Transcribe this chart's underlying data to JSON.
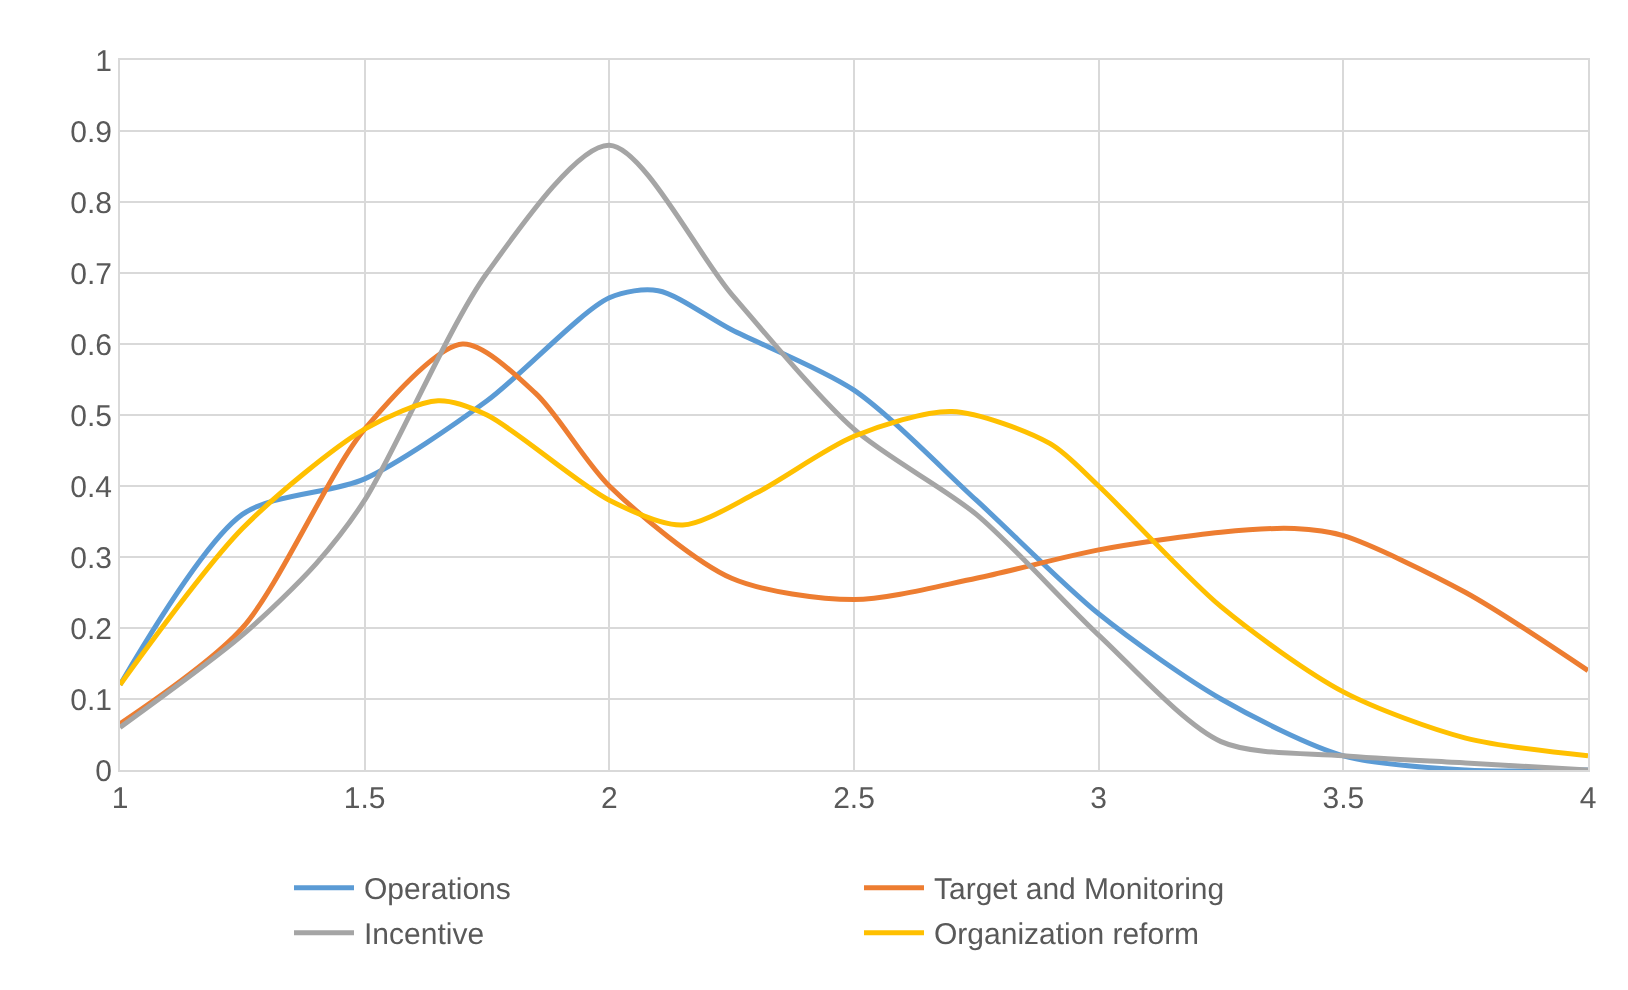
{
  "chart_data": {
    "type": "line",
    "xlim": [
      1,
      4
    ],
    "xticks": [
      1,
      1.5,
      2,
      2.5,
      3,
      3.5,
      4
    ],
    "ylim": [
      0,
      1
    ],
    "yticks": [
      0,
      0.1,
      0.2,
      0.3,
      0.4,
      0.5,
      0.6,
      0.7,
      0.8,
      0.9,
      1
    ],
    "grid": true,
    "legend": "bottom",
    "marker": "none",
    "line_style": "solid",
    "series": [
      {
        "name": "Operations",
        "color": "#5b9bd5",
        "x": [
          1,
          1.25,
          1.5,
          1.75,
          2,
          2.1,
          2.25,
          2.5,
          2.75,
          3,
          3.25,
          3.5,
          3.75,
          4
        ],
        "values": [
          0.12,
          0.36,
          0.41,
          0.52,
          0.665,
          0.675,
          0.62,
          0.535,
          0.38,
          0.22,
          0.1,
          0.02,
          0.0,
          0.0
        ]
      },
      {
        "name": "Target and Monitoring",
        "color": "#ed7d31",
        "x": [
          1,
          1.25,
          1.5,
          1.7,
          1.85,
          2,
          2.25,
          2.5,
          2.75,
          3,
          3.25,
          3.4,
          3.5,
          3.75,
          4
        ],
        "values": [
          0.065,
          0.2,
          0.48,
          0.6,
          0.53,
          0.4,
          0.27,
          0.24,
          0.27,
          0.31,
          0.335,
          0.34,
          0.33,
          0.25,
          0.14
        ]
      },
      {
        "name": "Incentive",
        "color": "#a5a5a5",
        "x": [
          1,
          1.25,
          1.4,
          1.5,
          1.75,
          2,
          2.25,
          2.5,
          2.75,
          3,
          3.25,
          3.5,
          3.75,
          4
        ],
        "values": [
          0.06,
          0.19,
          0.29,
          0.38,
          0.7,
          0.88,
          0.67,
          0.48,
          0.36,
          0.19,
          0.04,
          0.02,
          0.01,
          0.0
        ]
      },
      {
        "name": "Organization reform",
        "color": "#ffc000",
        "x": [
          1,
          1.25,
          1.5,
          1.65,
          1.75,
          2,
          2.15,
          2.3,
          2.5,
          2.7,
          2.9,
          3,
          3.25,
          3.5,
          3.75,
          4
        ],
        "values": [
          0.12,
          0.34,
          0.48,
          0.52,
          0.5,
          0.38,
          0.345,
          0.39,
          0.47,
          0.505,
          0.46,
          0.4,
          0.23,
          0.11,
          0.045,
          0.02
        ]
      }
    ]
  }
}
